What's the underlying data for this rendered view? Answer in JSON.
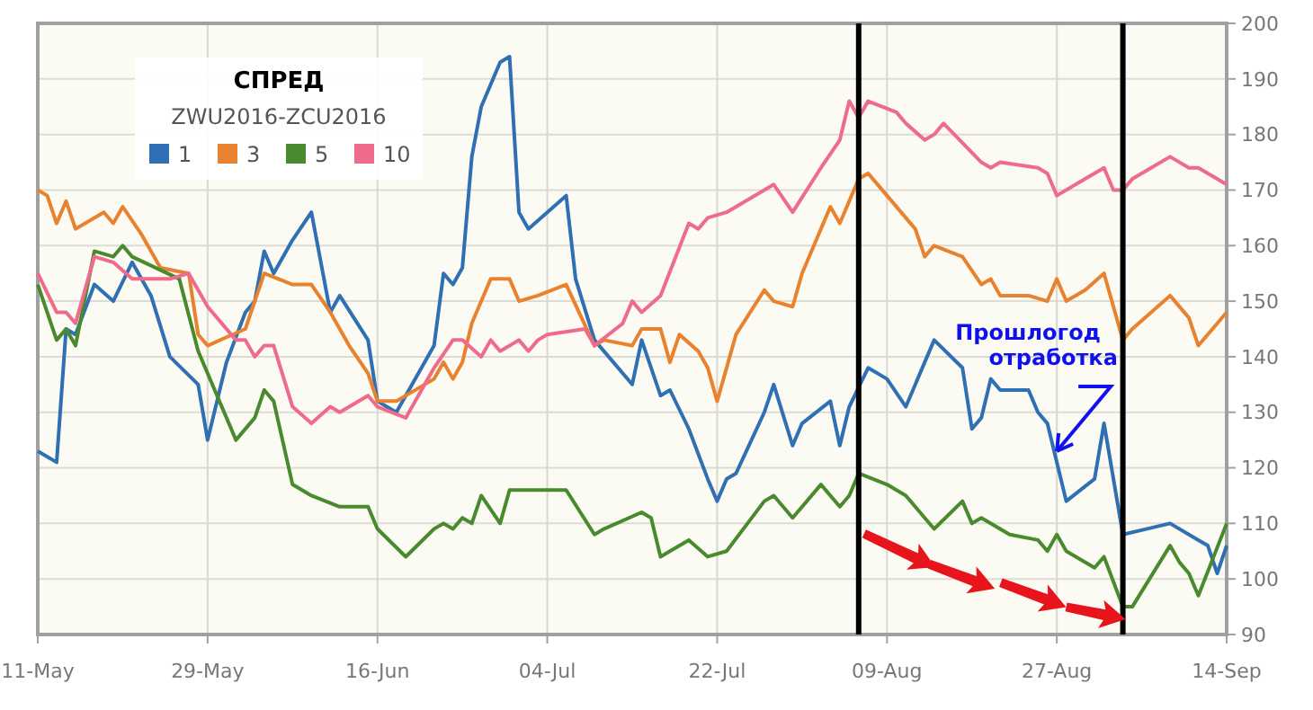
{
  "chart_data": {
    "type": "line",
    "legend_title": "СПРЕД",
    "subtitle": "ZWU2016-ZCU2016",
    "legend": "top left",
    "grid": true,
    "marker": "none",
    "line_style": "solid",
    "xlim": [
      "2016-05-11",
      "2016-09-14"
    ],
    "xticks": [
      {
        "value": "2016-05-11",
        "label": "11-May"
      },
      {
        "value": "2016-05-29",
        "label": "29-May"
      },
      {
        "value": "2016-06-16",
        "label": "16-Jun"
      },
      {
        "value": "2016-07-04",
        "label": "04-Jul"
      },
      {
        "value": "2016-07-22",
        "label": "22-Jul"
      },
      {
        "value": "2016-08-09",
        "label": "09-Aug"
      },
      {
        "value": "2016-08-27",
        "label": "27-Aug"
      },
      {
        "value": "2016-09-14",
        "label": "14-Sep"
      }
    ],
    "ylim": [
      90,
      200
    ],
    "yticks": [
      90,
      100,
      110,
      120,
      130,
      140,
      150,
      160,
      170,
      180,
      190,
      200
    ],
    "ref_lines": [
      {
        "axis": "x",
        "value": "2016-08-06",
        "color": "#000000"
      },
      {
        "axis": "x",
        "value": "2016-09-03",
        "color": "#000000"
      }
    ],
    "annotations": [
      {
        "text": "Прошлогод\nотработка",
        "x": "2016-08-27",
        "y": 123
      }
    ],
    "series": [
      {
        "name": "1",
        "color": "#2f6fb3",
        "x": [
          "2016-05-11",
          "2016-05-13",
          "2016-05-14",
          "2016-05-15",
          "2016-05-17",
          "2016-05-19",
          "2016-05-21",
          "2016-05-23",
          "2016-05-25",
          "2016-05-28",
          "2016-05-29",
          "2016-05-31",
          "2016-06-02",
          "2016-06-03",
          "2016-06-04",
          "2016-06-05",
          "2016-06-07",
          "2016-06-09",
          "2016-06-11",
          "2016-06-12",
          "2016-06-15",
          "2016-06-16",
          "2016-06-18",
          "2016-06-22",
          "2016-06-23",
          "2016-06-24",
          "2016-06-25",
          "2016-06-26",
          "2016-06-27",
          "2016-06-29",
          "2016-06-30",
          "2016-07-01",
          "2016-07-02",
          "2016-07-06",
          "2016-07-07",
          "2016-07-09",
          "2016-07-13",
          "2016-07-14",
          "2016-07-16",
          "2016-07-17",
          "2016-07-19",
          "2016-07-21",
          "2016-07-22",
          "2016-07-23",
          "2016-07-24",
          "2016-07-27",
          "2016-07-28",
          "2016-07-30",
          "2016-07-31",
          "2016-08-03",
          "2016-08-04",
          "2016-08-05",
          "2016-08-07",
          "2016-08-09",
          "2016-08-11",
          "2016-08-14",
          "2016-08-17",
          "2016-08-18",
          "2016-08-19",
          "2016-08-20",
          "2016-08-21",
          "2016-08-24",
          "2016-08-25",
          "2016-08-26",
          "2016-08-28",
          "2016-08-31",
          "2016-09-01",
          "2016-09-03",
          "2016-09-08",
          "2016-09-11",
          "2016-09-12",
          "2016-09-13",
          "2016-09-14"
        ],
        "values": [
          123,
          121,
          145,
          144,
          153,
          150,
          157,
          151,
          140,
          135,
          125,
          139,
          148,
          150,
          159,
          155,
          161,
          166,
          148,
          151,
          143,
          132,
          130,
          142,
          155,
          153,
          156,
          176,
          185,
          193,
          194,
          166,
          163,
          169,
          154,
          143,
          135,
          143,
          133,
          134,
          127,
          118,
          114,
          118,
          119,
          130,
          135,
          124,
          128,
          132,
          124,
          131,
          138,
          136,
          131,
          143,
          138,
          127,
          129,
          136,
          134,
          134,
          130,
          128,
          114,
          118,
          128,
          108,
          110,
          107,
          106,
          101,
          106
        ]
      },
      {
        "name": "3",
        "color": "#e8822e",
        "x": [
          "2016-05-11",
          "2016-05-12",
          "2016-05-13",
          "2016-05-14",
          "2016-05-15",
          "2016-05-18",
          "2016-05-19",
          "2016-05-20",
          "2016-05-22",
          "2016-05-24",
          "2016-05-27",
          "2016-05-28",
          "2016-05-29",
          "2016-06-02",
          "2016-06-04",
          "2016-06-07",
          "2016-06-09",
          "2016-06-11",
          "2016-06-13",
          "2016-06-15",
          "2016-06-16",
          "2016-06-18",
          "2016-06-22",
          "2016-06-23",
          "2016-06-24",
          "2016-06-25",
          "2016-06-26",
          "2016-06-28",
          "2016-06-30",
          "2016-07-01",
          "2016-07-03",
          "2016-07-06",
          "2016-07-09",
          "2016-07-10",
          "2016-07-13",
          "2016-07-14",
          "2016-07-16",
          "2016-07-17",
          "2016-07-18",
          "2016-07-20",
          "2016-07-21",
          "2016-07-22",
          "2016-07-24",
          "2016-07-27",
          "2016-07-28",
          "2016-07-30",
          "2016-07-31",
          "2016-08-03",
          "2016-08-04",
          "2016-08-06",
          "2016-08-07",
          "2016-08-11",
          "2016-08-12",
          "2016-08-13",
          "2016-08-14",
          "2016-08-17",
          "2016-08-19",
          "2016-08-20",
          "2016-08-21",
          "2016-08-24",
          "2016-08-26",
          "2016-08-27",
          "2016-08-28",
          "2016-08-30",
          "2016-09-01",
          "2016-09-02",
          "2016-09-03",
          "2016-09-04",
          "2016-09-08",
          "2016-09-10",
          "2016-09-11",
          "2016-09-14"
        ],
        "values": [
          170,
          169,
          164,
          168,
          163,
          166,
          164,
          167,
          162,
          156,
          155,
          144,
          142,
          145,
          155,
          153,
          153,
          148,
          142,
          137,
          132,
          132,
          136,
          139,
          136,
          139,
          146,
          154,
          154,
          150,
          151,
          153,
          142,
          143,
          142,
          145,
          145,
          139,
          144,
          141,
          138,
          132,
          144,
          152,
          150,
          149,
          155,
          167,
          164,
          172,
          173,
          165,
          163,
          158,
          160,
          158,
          153,
          154,
          151,
          151,
          150,
          154,
          150,
          152,
          155,
          149,
          143,
          145,
          151,
          147,
          142,
          148
        ]
      },
      {
        "name": "5",
        "color": "#4a8a2e",
        "x": [
          "2016-05-11",
          "2016-05-13",
          "2016-05-14",
          "2016-05-15",
          "2016-05-17",
          "2016-05-19",
          "2016-05-20",
          "2016-05-21",
          "2016-05-26",
          "2016-05-28",
          "2016-06-01",
          "2016-06-03",
          "2016-06-04",
          "2016-06-05",
          "2016-06-07",
          "2016-06-09",
          "2016-06-12",
          "2016-06-15",
          "2016-06-16",
          "2016-06-19",
          "2016-06-22",
          "2016-06-23",
          "2016-06-24",
          "2016-06-25",
          "2016-06-26",
          "2016-06-27",
          "2016-06-29",
          "2016-06-30",
          "2016-07-01",
          "2016-07-06",
          "2016-07-09",
          "2016-07-10",
          "2016-07-14",
          "2016-07-15",
          "2016-07-16",
          "2016-07-17",
          "2016-07-19",
          "2016-07-21",
          "2016-07-23",
          "2016-07-27",
          "2016-07-28",
          "2016-07-30",
          "2016-08-02",
          "2016-08-04",
          "2016-08-05",
          "2016-08-06",
          "2016-08-09",
          "2016-08-11",
          "2016-08-13",
          "2016-08-14",
          "2016-08-17",
          "2016-08-18",
          "2016-08-19",
          "2016-08-22",
          "2016-08-25",
          "2016-08-26",
          "2016-08-27",
          "2016-08-28",
          "2016-08-31",
          "2016-09-01",
          "2016-09-03",
          "2016-09-04",
          "2016-09-08",
          "2016-09-09",
          "2016-09-10",
          "2016-09-11",
          "2016-09-14"
        ],
        "values": [
          153,
          143,
          145,
          142,
          159,
          158,
          160,
          158,
          154,
          141,
          125,
          129,
          134,
          132,
          117,
          115,
          113,
          113,
          109,
          104,
          109,
          110,
          109,
          111,
          110,
          115,
          110,
          116,
          116,
          116,
          108,
          109,
          112,
          111,
          104,
          105,
          107,
          104,
          105,
          114,
          115,
          111,
          117,
          113,
          115,
          119,
          117,
          115,
          111,
          109,
          114,
          110,
          111,
          108,
          107,
          105,
          108,
          105,
          102,
          104,
          95,
          95,
          106,
          103,
          101,
          97,
          110
        ]
      },
      {
        "name": "10",
        "color": "#ee6b8b",
        "x": [
          "2016-05-11",
          "2016-05-13",
          "2016-05-14",
          "2016-05-15",
          "2016-05-17",
          "2016-05-19",
          "2016-05-21",
          "2016-05-25",
          "2016-05-27",
          "2016-05-29",
          "2016-06-01",
          "2016-06-02",
          "2016-06-03",
          "2016-06-04",
          "2016-06-05",
          "2016-06-07",
          "2016-06-09",
          "2016-06-11",
          "2016-06-12",
          "2016-06-15",
          "2016-06-16",
          "2016-06-19",
          "2016-06-22",
          "2016-06-24",
          "2016-06-25",
          "2016-06-27",
          "2016-06-28",
          "2016-06-29",
          "2016-07-01",
          "2016-07-02",
          "2016-07-03",
          "2016-07-04",
          "2016-07-08",
          "2016-07-09",
          "2016-07-12",
          "2016-07-13",
          "2016-07-14",
          "2016-07-16",
          "2016-07-19",
          "2016-07-20",
          "2016-07-21",
          "2016-07-23",
          "2016-07-28",
          "2016-07-30",
          "2016-08-02",
          "2016-08-04",
          "2016-08-05",
          "2016-08-06",
          "2016-08-07",
          "2016-08-10",
          "2016-08-11",
          "2016-08-13",
          "2016-08-14",
          "2016-08-15",
          "2016-08-19",
          "2016-08-20",
          "2016-08-21",
          "2016-08-25",
          "2016-08-26",
          "2016-08-27",
          "2016-08-30",
          "2016-09-01",
          "2016-09-02",
          "2016-09-03",
          "2016-09-04",
          "2016-09-08",
          "2016-09-10",
          "2016-09-11",
          "2016-09-14"
        ],
        "values": [
          155,
          148,
          148,
          146,
          158,
          157,
          154,
          154,
          155,
          149,
          143,
          143,
          140,
          142,
          142,
          131,
          128,
          131,
          130,
          133,
          131,
          129,
          138,
          143,
          143,
          140,
          143,
          141,
          143,
          141,
          143,
          144,
          145,
          142,
          146,
          150,
          148,
          151,
          164,
          163,
          165,
          166,
          171,
          166,
          174,
          179,
          186,
          183,
          186,
          184,
          182,
          179,
          180,
          182,
          175,
          174,
          175,
          174,
          173,
          169,
          172,
          174,
          170,
          170,
          172,
          176,
          174,
          174,
          171
        ]
      }
    ]
  }
}
